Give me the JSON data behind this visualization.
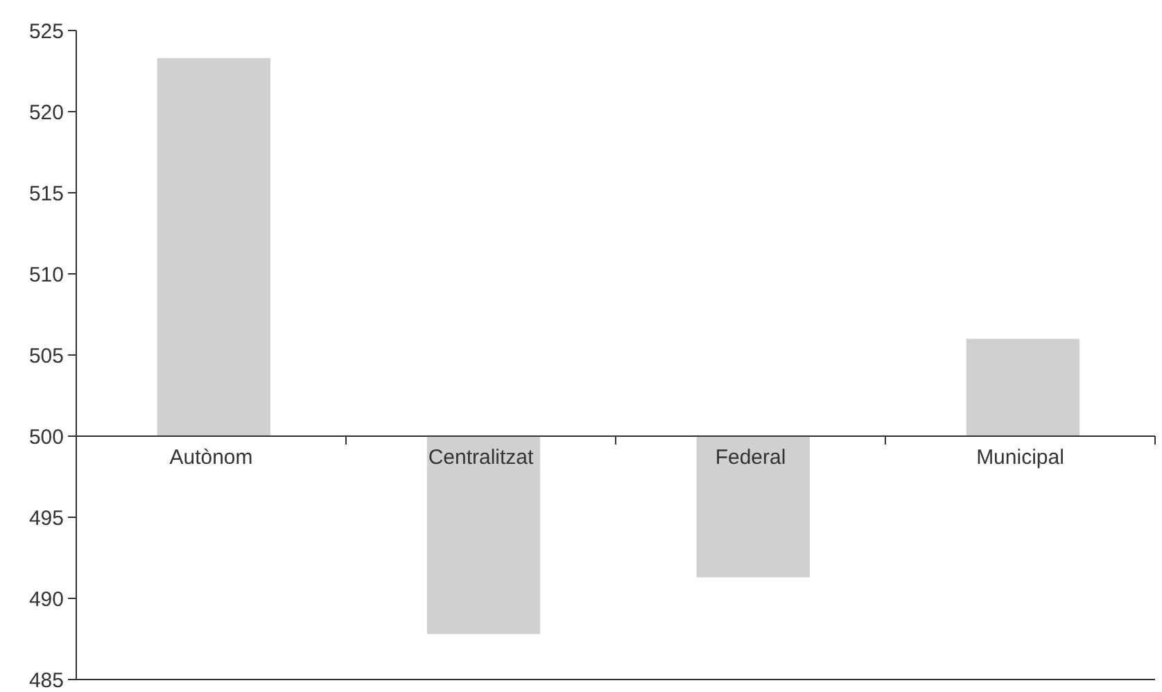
{
  "chart_data": {
    "type": "bar",
    "categories": [
      "Autònom",
      "Centralitzat",
      "Federal",
      "Municipal"
    ],
    "base": [
      500,
      500,
      500,
      500
    ],
    "values": [
      23.3,
      -12.2,
      -8.7,
      6
    ],
    "color": "#d0d0d0",
    "ylim": [
      485,
      525
    ],
    "yticks": [
      485,
      490,
      495,
      500,
      505,
      510,
      515,
      520,
      525
    ],
    "grid": false
  }
}
